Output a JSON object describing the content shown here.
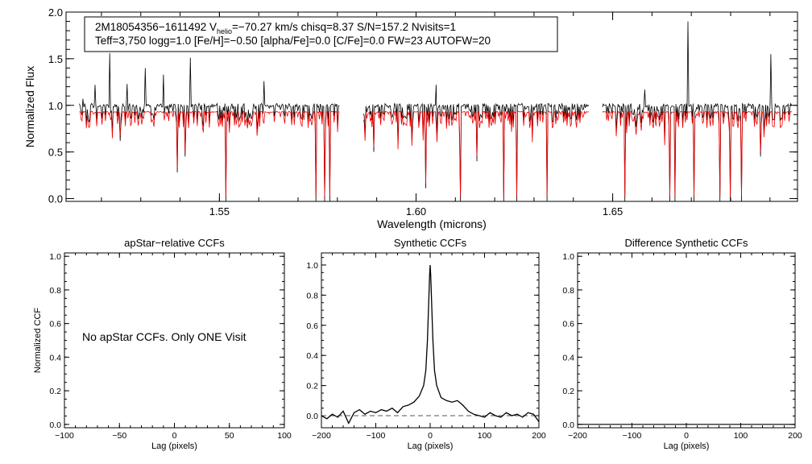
{
  "colors": {
    "observed": "#000000",
    "model": "#ee0000",
    "zero_line": "#555555"
  },
  "info_box": {
    "line1_pre": "2M18054356−1611492  V",
    "line1_sub": "helio",
    "line1_post": "=−70.27 km/s  chisq=8.37  S/N=157.2  Nvisits=1",
    "line2": "Teff=3,750 logg=1.0 [Fe/H]=−0.50 [alpha/Fe]=0.0 [C/Fe]=0.0 FW=23 AUTOFW=20"
  },
  "note": "No apStar CCFs.  Only ONE Visit",
  "chart_data": [
    {
      "id": "spectrum",
      "type": "line",
      "title": "",
      "xlabel": "Wavelength (microns)",
      "ylabel": "Normalized Flux",
      "xlim": [
        1.511,
        1.697
      ],
      "ylim": [
        -0.03,
        2.0
      ],
      "xticks": [
        1.55,
        1.6,
        1.65
      ],
      "xtick_labels": [
        "1.55",
        "1.60",
        "1.65"
      ],
      "yticks": [
        0.0,
        0.5,
        1.0,
        1.5,
        2.0
      ],
      "ytick_labels": [
        "0.0",
        "0.5",
        "1.0",
        "1.5",
        "2.0"
      ],
      "chips": [
        [
          1.5144,
          1.5805
        ],
        [
          1.5866,
          1.6439
        ],
        [
          1.6474,
          1.6955
        ]
      ],
      "series": [
        {
          "name": "Observed spectrum",
          "color": "#000000",
          "baseline": 1.0,
          "depth": 0.18
        },
        {
          "name": "Best-fit synthetic model",
          "color": "#ee0000",
          "baseline": 0.93,
          "depth": 0.18
        }
      ],
      "emission_spikes": [
        {
          "x": 1.5153,
          "y": 1.07
        },
        {
          "x": 1.5183,
          "y": 1.22
        },
        {
          "x": 1.5222,
          "y": 1.56
        },
        {
          "x": 1.5265,
          "y": 1.23
        },
        {
          "x": 1.5312,
          "y": 1.4
        },
        {
          "x": 1.5357,
          "y": 1.33
        },
        {
          "x": 1.5427,
          "y": 1.51
        },
        {
          "x": 1.5613,
          "y": 1.26
        },
        {
          "x": 1.6052,
          "y": 1.22
        },
        {
          "x": 1.6255,
          "y": 1.18
        },
        {
          "x": 1.6582,
          "y": 1.17
        },
        {
          "x": 1.6692,
          "y": 1.9
        },
        {
          "x": 1.6902,
          "y": 1.55
        }
      ],
      "absorption_dips": [
        {
          "x": 1.5248,
          "y": 0.62
        },
        {
          "x": 1.5392,
          "y": 0.28
        },
        {
          "x": 1.5412,
          "y": 0.45
        },
        {
          "x": 1.5517,
          "y": -0.03
        },
        {
          "x": 1.5746,
          "y": -0.03
        },
        {
          "x": 1.5768,
          "y": -0.03
        },
        {
          "x": 1.5781,
          "y": -0.03
        },
        {
          "x": 1.5893,
          "y": 0.5
        },
        {
          "x": 1.6024,
          "y": 0.11
        },
        {
          "x": 1.6113,
          "y": -0.03
        },
        {
          "x": 1.6155,
          "y": 0.4
        },
        {
          "x": 1.6223,
          "y": -0.03
        },
        {
          "x": 1.6256,
          "y": -0.03
        },
        {
          "x": 1.6333,
          "y": -0.03
        },
        {
          "x": 1.6531,
          "y": -0.03
        },
        {
          "x": 1.6646,
          "y": -0.03
        },
        {
          "x": 1.6659,
          "y": -0.03
        },
        {
          "x": 1.6706,
          "y": -0.03
        },
        {
          "x": 1.6773,
          "y": -0.03
        },
        {
          "x": 1.6798,
          "y": -0.03
        },
        {
          "x": 1.6828,
          "y": -0.03
        },
        {
          "x": 1.6875,
          "y": 0.45
        }
      ]
    },
    {
      "id": "apstar_ccf",
      "type": "line",
      "title": "apStar−relative CCFs",
      "xlabel": "Lag (pixels)",
      "ylabel": "Normalized CCF",
      "xlim": [
        -100,
        100
      ],
      "ylim": [
        -0.02,
        1.02
      ],
      "xticks": [
        -100,
        -50,
        0,
        50,
        100
      ],
      "xtick_labels": [
        "−100",
        "−50",
        "0",
        "50",
        "100"
      ],
      "yticks": [
        0.0,
        0.2,
        0.4,
        0.6,
        0.8,
        1.0
      ],
      "ytick_labels": [
        "0.0",
        "0.2",
        "0.4",
        "0.6",
        "0.8",
        "1.0"
      ],
      "series": []
    },
    {
      "id": "synthetic_ccf",
      "type": "line",
      "title": "Synthetic CCFs",
      "xlabel": "Lag (pixels)",
      "ylabel": "",
      "xlim": [
        -200,
        200
      ],
      "ylim": [
        -0.08,
        1.08
      ],
      "xticks": [
        -200,
        -100,
        0,
        100,
        200
      ],
      "xtick_labels": [
        "−200",
        "−100",
        "0",
        "100",
        "200"
      ],
      "yticks": [
        0.0,
        0.2,
        0.4,
        0.6,
        0.8,
        1.0
      ],
      "ytick_labels": [
        "0.0",
        "0.2",
        "0.4",
        "0.6",
        "0.8",
        "1.0"
      ],
      "zero_line": 0.0,
      "series": [
        {
          "name": "CCF",
          "color": "#000000",
          "x": [
            -200,
            -190,
            -180,
            -170,
            -160,
            -150,
            -140,
            -130,
            -120,
            -110,
            -100,
            -90,
            -80,
            -70,
            -60,
            -50,
            -40,
            -30,
            -20,
            -12,
            -8,
            -5,
            -3,
            -1,
            0,
            1,
            3,
            5,
            8,
            12,
            20,
            30,
            40,
            50,
            60,
            70,
            80,
            90,
            100,
            110,
            120,
            130,
            140,
            150,
            160,
            170,
            180,
            190,
            200
          ],
          "y": [
            0.0,
            -0.02,
            0.01,
            -0.01,
            0.03,
            -0.05,
            0.02,
            0.04,
            0.01,
            0.03,
            0.02,
            0.04,
            0.03,
            0.05,
            0.02,
            0.06,
            0.07,
            0.09,
            0.13,
            0.2,
            0.3,
            0.5,
            0.72,
            0.93,
            1.0,
            0.93,
            0.72,
            0.5,
            0.3,
            0.2,
            0.12,
            0.1,
            0.09,
            0.1,
            0.07,
            0.03,
            0.01,
            0.0,
            -0.01,
            0.02,
            0.0,
            -0.01,
            0.02,
            0.0,
            0.01,
            -0.01,
            0.02,
            0.01,
            -0.04
          ]
        }
      ]
    },
    {
      "id": "difference_ccf",
      "type": "line",
      "title": "Difference Synthetic CCFs",
      "xlabel": "Lag (pixels)",
      "ylabel": "",
      "xlim": [
        -200,
        200
      ],
      "ylim": [
        -0.02,
        1.02
      ],
      "xticks": [
        -200,
        -100,
        0,
        100,
        200
      ],
      "xtick_labels": [
        "−200",
        "−100",
        "0",
        "100",
        "200"
      ],
      "yticks": [
        0.0,
        0.2,
        0.4,
        0.6,
        0.8,
        1.0
      ],
      "ytick_labels": [
        "0.0",
        "0.2",
        "0.4",
        "0.6",
        "0.8",
        "1.0"
      ],
      "series": [
        {
          "name": "Difference CCF",
          "color": "#000000",
          "x": [
            -200,
            200
          ],
          "y": [
            0.0,
            0.0
          ]
        }
      ]
    }
  ]
}
